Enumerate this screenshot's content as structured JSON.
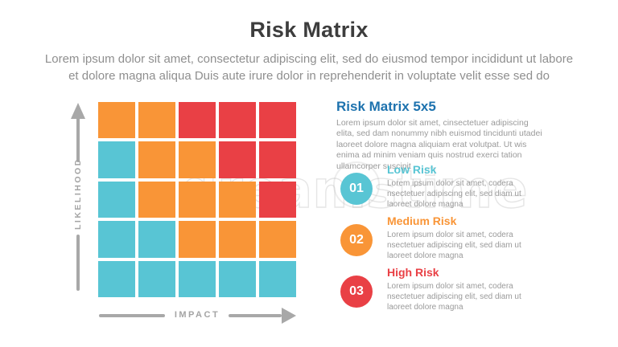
{
  "colors": {
    "teal": "#58C5D4",
    "orange": "#F99537",
    "red": "#E94045",
    "heading_blue": "#1D72AE",
    "title_dark": "#3D3D3D",
    "body_gray": "#8F8F8F",
    "axis_gray": "#A8A8A8"
  },
  "header": {
    "title": "Risk Matrix",
    "subtitle_line1": "Lorem ipsum dolor sit amet, consectetur adipiscing elit, sed do eiusmod tempor incididunt ut labore",
    "subtitle_line2": "et dolore magna aliqua Duis aute irure dolor in reprehenderit in voluptate velit esse sed do"
  },
  "matrix": {
    "y_axis_label": "LIKELIHOOD",
    "x_axis_label": "IMPACT",
    "rows": 5,
    "cols": 5,
    "cells": [
      [
        "orange",
        "orange",
        "red",
        "red",
        "red"
      ],
      [
        "teal",
        "orange",
        "orange",
        "red",
        "red"
      ],
      [
        "teal",
        "orange",
        "orange",
        "orange",
        "red"
      ],
      [
        "teal",
        "teal",
        "orange",
        "orange",
        "orange"
      ],
      [
        "teal",
        "teal",
        "teal",
        "teal",
        "teal"
      ]
    ]
  },
  "panel": {
    "heading": "Risk Matrix 5x5",
    "description": "Lorem ipsum dolor sit amet, cinsectetuer adipiscing elita, sed dam nonummy nibh euismod tincidunti utadei laoreet dolore magna aliquiam erat volutpat. Ut wis enima ad minim veniam quis nostrud exerci tation ullamcorper suscipit"
  },
  "legend": {
    "items": [
      {
        "number": "01",
        "title": "Low Risk",
        "description": "Lorem ipsum dolor sit amet, codera nsectetuer adipiscing elit, sed diam ut laoreet dolore magna",
        "color": "#58C5D4"
      },
      {
        "number": "02",
        "title": "Medium Risk",
        "description": "Lorem ipsum dolor sit amet, codera nsectetuer adipiscing elit, sed diam ut laoreet dolore magna",
        "color": "#F99537"
      },
      {
        "number": "03",
        "title": "High Risk",
        "description": "Lorem ipsum dolor sit amet, codera nsectetuer adipiscing elit, sed diam ut laoreet dolore magna",
        "color": "#E94045"
      }
    ]
  },
  "watermark": {
    "text": "dreamstime"
  }
}
